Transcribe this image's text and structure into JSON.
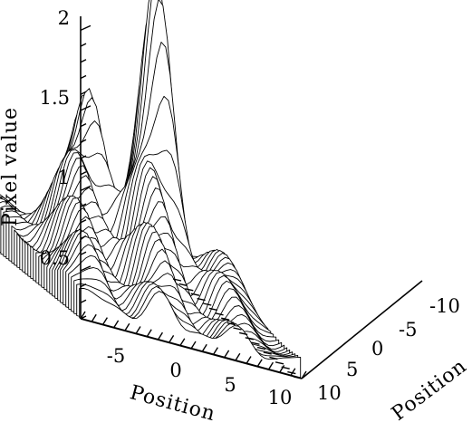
{
  "chart_data": {
    "type": "surface",
    "style": "stacked 3D line plot (hidden-line), black on white",
    "zlabel": "Pixel value",
    "xlabel": "Position",
    "ylabel": "Position",
    "zlim": [
      0.2,
      2.0
    ],
    "xlim": [
      -10,
      10
    ],
    "ylim": [
      -10,
      10
    ],
    "z_ticks": [
      "0.5",
      "1",
      "1.5",
      "2"
    ],
    "x_ticks": [
      "-5",
      "0",
      "5",
      "10"
    ],
    "y_ticks": [
      "-10",
      "-5",
      "0",
      "5",
      "10"
    ],
    "x_tick_values": [
      -5,
      0,
      5,
      10
    ],
    "y_tick_values": [
      -10,
      -5,
      0,
      5,
      10
    ],
    "z_tick_values": [
      0.5,
      1,
      1.5,
      2
    ],
    "peak": {
      "x": 3,
      "y": -1,
      "value": 2.05
    },
    "secondary_peak": {
      "x": -2,
      "y": -3,
      "value": 1.5
    },
    "base_level": 0.3,
    "grid": false,
    "legend": "none"
  }
}
